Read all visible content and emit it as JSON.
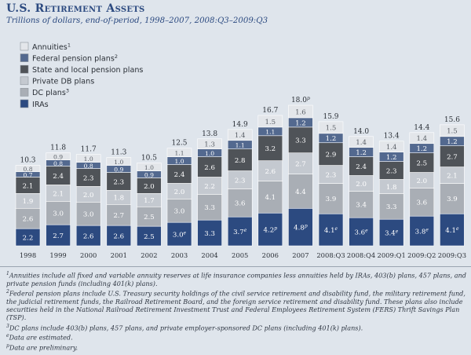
{
  "header": {
    "title": "U.S. Retirement Assets",
    "subtitle": "Trillions of dollars, end-of-period, 1998–2007, 2008:Q3–2009:Q3"
  },
  "chart_data": {
    "type": "bar",
    "stacked": true,
    "title": "U.S. Retirement Assets",
    "subtitle": "Trillions of dollars, end-of-period, 1998–2007, 2008:Q3–2009:Q3",
    "xlabel": "",
    "ylabel": "",
    "ylim": [
      0,
      18
    ],
    "grid": false,
    "legend_position": "top-left",
    "categories": [
      "1998",
      "1999",
      "2000",
      "2001",
      "2002",
      "2003",
      "2004",
      "2005",
      "2006",
      "2007",
      "2008:Q3",
      "2008:Q4",
      "2009:Q1",
      "2009:Q2",
      "2009:Q3"
    ],
    "totals": [
      "10.3",
      "11.8",
      "11.7",
      "11.3",
      "10.5",
      "12.5",
      "13.8",
      "14.9",
      "16.7",
      "18.0",
      "15.9",
      "14.0",
      "13.4",
      "14.4",
      "15.6"
    ],
    "total_marks": [
      "",
      "",
      "",
      "",
      "",
      "",
      "",
      "",
      "",
      "p",
      "",
      "",
      "",
      "",
      ""
    ],
    "series": [
      {
        "name": "IRAs",
        "color": "#2c4a80",
        "text_color": "#ffffff",
        "values": [
          2.2,
          2.7,
          2.6,
          2.6,
          2.5,
          3.0,
          3.3,
          3.7,
          4.2,
          4.8,
          4.1,
          3.6,
          3.4,
          3.8,
          4.1
        ],
        "labels": [
          "2.2",
          "2.7",
          "2.6",
          "2.6",
          "2.5",
          "3.0",
          "3.3",
          "3.7",
          "4.2",
          "4.8",
          "4.1",
          "3.6",
          "3.4",
          "3.8",
          "4.1"
        ],
        "marks": [
          "",
          "",
          "",
          "",
          "",
          "e",
          "",
          "e",
          "p",
          "p",
          "e",
          "e",
          "e",
          "e",
          "e"
        ]
      },
      {
        "name": "DC plans",
        "color": "#a9aeb5",
        "text_color": "#ffffff",
        "values": [
          2.6,
          3.0,
          3.0,
          2.7,
          2.5,
          3.0,
          3.3,
          3.6,
          4.1,
          4.4,
          3.9,
          3.4,
          3.3,
          3.6,
          3.9
        ],
        "labels": [
          "2.6",
          "3.0",
          "3.0",
          "2.7",
          "2.5",
          "3.0",
          "3.3",
          "3.6",
          "4.1",
          "4.4",
          "3.9",
          "3.4",
          "3.3",
          "3.6",
          "3.9"
        ]
      },
      {
        "name": "Private DB plans",
        "color": "#c4c9d0",
        "text_color": "#ffffff",
        "values": [
          1.9,
          2.1,
          2.0,
          1.8,
          1.7,
          2.0,
          2.2,
          2.3,
          2.6,
          2.7,
          2.3,
          2.0,
          1.8,
          2.0,
          2.1
        ],
        "labels": [
          "1.9",
          "2.1",
          "2.0",
          "1.8",
          "1.7",
          "2.0",
          "2.2",
          "2.3",
          "2.6",
          "2.7",
          "2.3",
          "2.0",
          "1.8",
          "2.0",
          "2.1"
        ]
      },
      {
        "name": "State and local pension plans",
        "color": "#4f5358",
        "text_color": "#ffffff",
        "values": [
          2.1,
          2.4,
          2.3,
          2.3,
          2.0,
          2.4,
          2.6,
          2.8,
          3.2,
          3.3,
          2.9,
          2.4,
          2.3,
          2.5,
          2.7
        ],
        "labels": [
          "2.1",
          "2.4",
          "2.3",
          "2.3",
          "2.0",
          "2.4",
          "2.6",
          "2.8",
          "3.2",
          "3.3",
          "2.9",
          "2.4",
          "2.3",
          "2.5",
          "2.7"
        ]
      },
      {
        "name": "Federal pension plans",
        "color": "#53698f",
        "text_color": "#ffffff",
        "values": [
          0.7,
          0.8,
          0.8,
          0.9,
          0.9,
          1.0,
          1.0,
          1.1,
          1.1,
          1.2,
          1.2,
          1.2,
          1.2,
          1.2,
          1.2
        ],
        "labels": [
          "0.7",
          "0.8",
          "0.8",
          "0.9",
          "0.9",
          "1.0",
          "1.0",
          "1.1",
          "1.1",
          "1.2",
          "1.2",
          "1.2",
          "1.2",
          "1.2",
          "1.2"
        ]
      },
      {
        "name": "Annuities",
        "color": "#e3e6ea",
        "text_color": "#5a5f66",
        "values": [
          0.8,
          0.9,
          1.0,
          1.0,
          1.0,
          1.1,
          1.3,
          1.4,
          1.5,
          1.6,
          1.5,
          1.4,
          1.4,
          1.4,
          1.5
        ],
        "labels": [
          "0.8",
          "0.9",
          "1.0",
          "1.0",
          "1.0",
          "1.1",
          "1.3",
          "1.4",
          "1.5",
          "1.6",
          "1.5",
          "1.4",
          "1.4",
          "1.4",
          "1.5"
        ]
      }
    ],
    "legend": [
      {
        "label": "Annuities",
        "sup": "1",
        "color": "#e3e6ea"
      },
      {
        "label": "Federal pension plans",
        "sup": "2",
        "color": "#53698f"
      },
      {
        "label": "State and local pension plans",
        "sup": "",
        "color": "#4f5358"
      },
      {
        "label": "Private DB plans",
        "sup": "",
        "color": "#c4c9d0"
      },
      {
        "label": "DC plans",
        "sup": "3",
        "color": "#a9aeb5"
      },
      {
        "label": "IRAs",
        "sup": "",
        "color": "#2c4a80"
      }
    ]
  },
  "footnotes": [
    {
      "mark": "1",
      "text": "Annuities include all fixed and variable annuity reserves at life insurance companies less annuities held by IRAs, 403(b) plans, 457 plans, and private pension funds (including 401(k) plans)."
    },
    {
      "mark": "2",
      "text": "Federal pension plans include U.S. Treasury security holdings of the civil service retirement and disability fund, the military retirement fund, the judicial retirement funds, the Railroad Retirement Board, and the foreign service retirement and disability fund. These plans also include securities held in the National Railroad Retirement Investment Trust and Federal Employees Retirement System (FERS) Thrift Savings Plan (TSP)."
    },
    {
      "mark": "3",
      "text": "DC plans include 403(b) plans, 457 plans, and private employer-sponsored DC plans (including 401(k) plans)."
    },
    {
      "mark": "e",
      "text": "Data are estimated."
    },
    {
      "mark": "p",
      "text": "Data are preliminary."
    }
  ]
}
